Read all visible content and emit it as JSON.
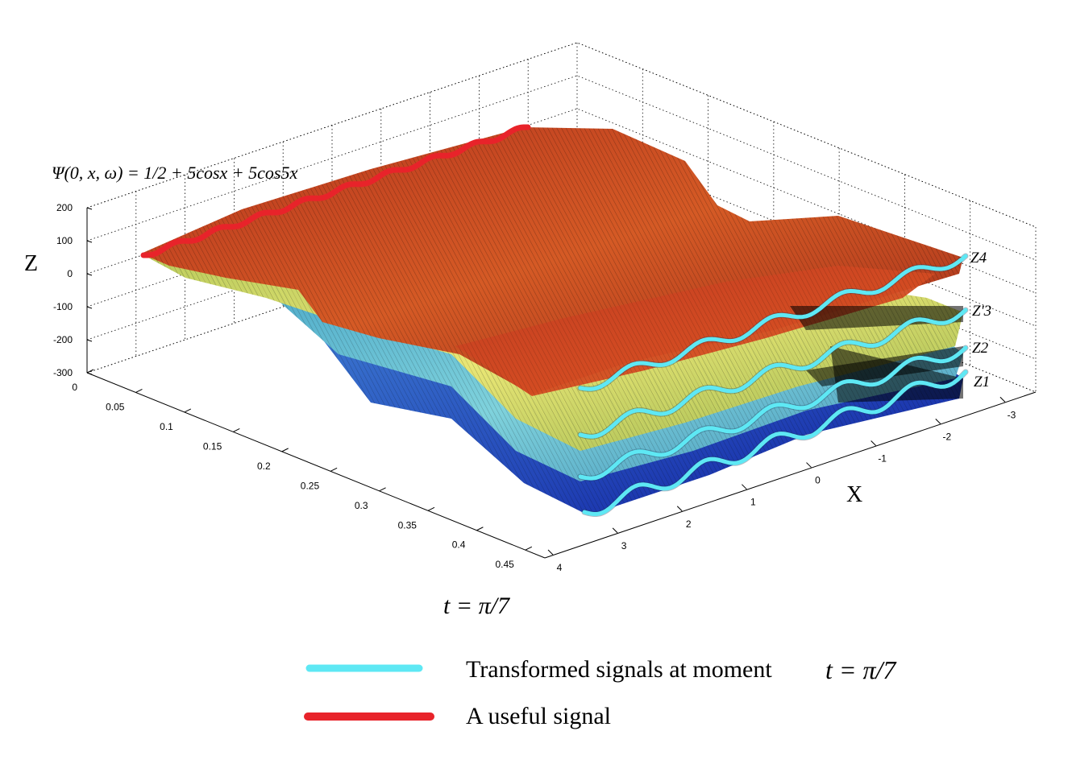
{
  "chart_data": {
    "type": "surface-3d",
    "title_formula": "Ψ(0, x, ω) = 1/2 + 5cosx + 5cos5x",
    "zlabel": "Z",
    "xlabel": "X",
    "tlabel": "t = π/7",
    "z_ticks": [
      "200",
      "100",
      "0",
      "-100",
      "-200",
      "-300"
    ],
    "t_ticks": [
      "0",
      "0.05",
      "0.1",
      "0.15",
      "0.2",
      "0.25",
      "0.3",
      "0.35",
      "0.4",
      "0.45"
    ],
    "x_ticks": [
      "-3",
      "-2",
      "-1",
      "0",
      "1",
      "2",
      "3",
      "4"
    ],
    "surface_labels": [
      "Z4",
      "Z'3",
      "Z2",
      "Z1"
    ],
    "legend": [
      {
        "label": "Transformed signals  at  moment",
        "math": "t = π/7",
        "color": "#5ee8f4"
      },
      {
        "label": "A  useful  signal",
        "color": "#e8232a"
      }
    ],
    "colors": {
      "transformed": "#5ee8f4",
      "useful": "#e8232a"
    }
  }
}
